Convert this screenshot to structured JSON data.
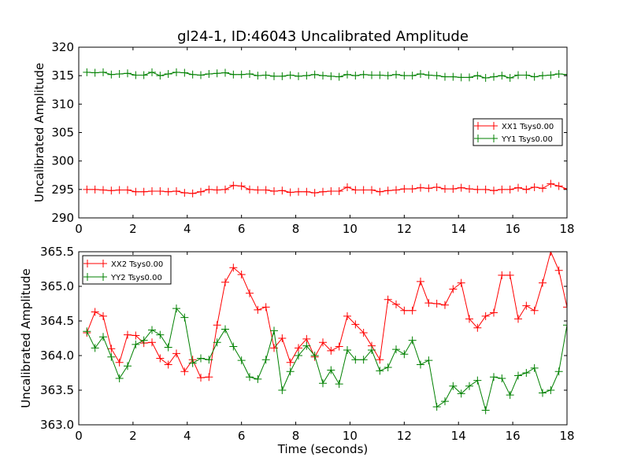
{
  "chart_data": [
    {
      "type": "line",
      "title": "gl24-1, ID:46043 Uncalibrated Amplitude",
      "xlabel": "",
      "ylabel": "Uncalibrated Amplitude",
      "xlim": [
        0,
        18
      ],
      "ylim": [
        290,
        320
      ],
      "xticks": [
        "0",
        "2",
        "4",
        "6",
        "8",
        "10",
        "12",
        "14",
        "16",
        "18"
      ],
      "yticks": [
        "290",
        "295",
        "300",
        "305",
        "310",
        "315",
        "320"
      ],
      "grid": false,
      "legend_position": "right",
      "x": [
        0.3,
        0.6,
        0.9,
        1.2,
        1.5,
        1.8,
        2.1,
        2.4,
        2.7,
        3.0,
        3.3,
        3.6,
        3.9,
        4.2,
        4.5,
        4.8,
        5.1,
        5.4,
        5.7,
        6.0,
        6.3,
        6.6,
        6.9,
        7.2,
        7.5,
        7.8,
        8.1,
        8.4,
        8.7,
        9.0,
        9.3,
        9.6,
        9.9,
        10.2,
        10.5,
        10.8,
        11.1,
        11.4,
        11.7,
        12.0,
        12.3,
        12.6,
        12.9,
        13.2,
        13.5,
        13.8,
        14.1,
        14.4,
        14.7,
        15.0,
        15.3,
        15.6,
        15.9,
        16.2,
        16.5,
        16.8,
        17.1,
        17.4,
        17.7,
        18.0
      ],
      "series": [
        {
          "name": "XX1 Tsys0.00",
          "color": "#ff0000",
          "values": [
            295.0,
            295.0,
            294.9,
            294.8,
            294.9,
            294.9,
            294.6,
            294.6,
            294.7,
            294.7,
            294.6,
            294.7,
            294.4,
            294.3,
            294.6,
            295.0,
            294.9,
            295.0,
            295.7,
            295.6,
            295.0,
            294.9,
            294.9,
            294.7,
            294.8,
            294.5,
            294.6,
            294.6,
            294.4,
            294.6,
            294.7,
            294.7,
            295.4,
            294.9,
            294.9,
            294.9,
            294.6,
            294.8,
            294.9,
            295.1,
            295.1,
            295.3,
            295.2,
            295.4,
            295.1,
            295.1,
            295.3,
            295.1,
            295.0,
            295.0,
            294.8,
            295.0,
            295.0,
            295.3,
            295.0,
            295.4,
            295.2,
            296.0,
            295.6,
            295.1
          ]
        },
        {
          "name": "YY1 Tsys0.00",
          "color": "#008000",
          "values": [
            315.6,
            315.5,
            315.6,
            315.2,
            315.3,
            315.4,
            315.1,
            315.1,
            315.6,
            315.0,
            315.3,
            315.6,
            315.5,
            315.2,
            315.1,
            315.3,
            315.4,
            315.5,
            315.2,
            315.2,
            315.3,
            315.0,
            315.1,
            314.9,
            314.9,
            315.1,
            314.9,
            315.0,
            315.2,
            315.0,
            314.9,
            314.8,
            315.2,
            315.0,
            315.2,
            315.1,
            315.1,
            315.0,
            315.2,
            315.0,
            315.0,
            315.3,
            315.1,
            315.0,
            314.8,
            314.8,
            314.7,
            314.7,
            315.0,
            314.6,
            314.8,
            315.0,
            314.6,
            315.1,
            315.1,
            314.8,
            315.0,
            315.1,
            315.3,
            315.2
          ]
        }
      ]
    },
    {
      "type": "line",
      "title": "",
      "xlabel": "Time (seconds)",
      "ylabel": "Uncalibrated Amplitude",
      "xlim": [
        0,
        18
      ],
      "ylim": [
        363.0,
        365.5
      ],
      "xticks": [
        "0",
        "2",
        "4",
        "6",
        "8",
        "10",
        "12",
        "14",
        "16",
        "18"
      ],
      "yticks": [
        "363.0",
        "363.5",
        "364.0",
        "364.5",
        "365.0",
        "365.5"
      ],
      "grid": false,
      "legend_position": "upper-left",
      "x": [
        0.3,
        0.6,
        0.9,
        1.2,
        1.5,
        1.8,
        2.1,
        2.4,
        2.7,
        3.0,
        3.3,
        3.6,
        3.9,
        4.2,
        4.5,
        4.8,
        5.1,
        5.4,
        5.7,
        6.0,
        6.3,
        6.6,
        6.9,
        7.2,
        7.5,
        7.8,
        8.1,
        8.4,
        8.7,
        9.0,
        9.3,
        9.6,
        9.9,
        10.2,
        10.5,
        10.8,
        11.1,
        11.4,
        11.7,
        12.0,
        12.3,
        12.6,
        12.9,
        13.2,
        13.5,
        13.8,
        14.1,
        14.4,
        14.7,
        15.0,
        15.3,
        15.6,
        15.9,
        16.2,
        16.5,
        16.8,
        17.1,
        17.4,
        17.7,
        18.0
      ],
      "series": [
        {
          "name": "XX2 Tsys0.00",
          "color": "#ff0000",
          "values": [
            364.33,
            364.63,
            364.57,
            364.1,
            363.9,
            364.3,
            364.29,
            364.18,
            364.19,
            363.96,
            363.87,
            364.03,
            363.77,
            363.94,
            363.68,
            363.69,
            364.44,
            365.06,
            365.27,
            365.17,
            364.9,
            364.66,
            364.7,
            364.11,
            364.25,
            363.9,
            364.11,
            364.24,
            363.98,
            364.19,
            364.07,
            364.13,
            364.57,
            364.45,
            364.33,
            364.14,
            363.94,
            364.81,
            364.74,
            364.65,
            364.65,
            365.07,
            364.76,
            364.75,
            364.73,
            364.96,
            365.05,
            364.53,
            364.4,
            364.57,
            364.62,
            365.16,
            365.16,
            364.53,
            364.72,
            364.65,
            365.05,
            365.5,
            365.23,
            364.7
          ]
        },
        {
          "name": "YY2 Tsys0.00",
          "color": "#008000",
          "values": [
            364.35,
            364.11,
            364.27,
            363.98,
            363.67,
            363.85,
            364.16,
            364.22,
            364.37,
            364.3,
            364.12,
            364.68,
            364.55,
            363.89,
            363.96,
            363.94,
            364.19,
            364.38,
            364.13,
            363.93,
            363.69,
            363.66,
            363.94,
            364.36,
            363.5,
            363.77,
            364.0,
            364.14,
            364.0,
            363.6,
            363.79,
            363.59,
            364.08,
            363.94,
            363.94,
            364.08,
            363.78,
            363.83,
            364.09,
            364.02,
            364.22,
            363.87,
            363.93,
            363.26,
            363.34,
            363.56,
            363.45,
            363.56,
            363.64,
            363.21,
            363.69,
            363.67,
            363.43,
            363.71,
            363.75,
            363.82,
            363.46,
            363.5,
            363.77,
            364.44
          ]
        }
      ]
    }
  ]
}
